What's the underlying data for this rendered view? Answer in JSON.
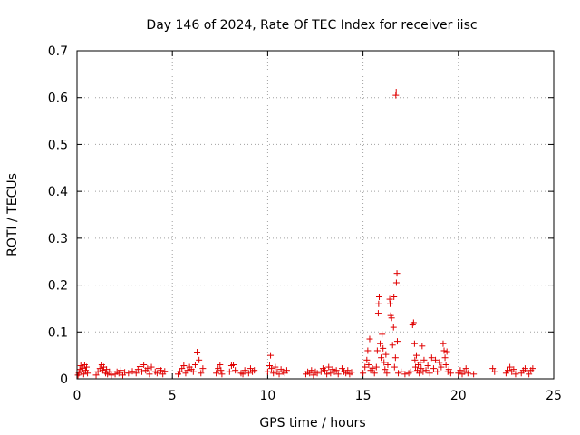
{
  "chart_data": {
    "type": "scatter",
    "title": "Day 146 of 2024, Rate Of TEC Index for receiver iisc",
    "xlabel": "GPS time / hours",
    "ylabel": "ROTI / TECUs",
    "xlim": [
      0,
      25
    ],
    "ylim": [
      0,
      0.7
    ],
    "xticks": [
      0,
      5,
      10,
      15,
      20,
      25
    ],
    "yticks": [
      0,
      0.1,
      0.2,
      0.3,
      0.4,
      0.5,
      0.6,
      0.7
    ],
    "grid": true,
    "marker": "+",
    "colors": {
      "points": "#e00000"
    },
    "series": [
      {
        "name": "ROTI",
        "points": [
          [
            0.1,
            0.012
          ],
          [
            0.15,
            0.02
          ],
          [
            0.2,
            0.028
          ],
          [
            0.25,
            0.015
          ],
          [
            0.3,
            0.022
          ],
          [
            0.35,
            0.01
          ],
          [
            0.4,
            0.03
          ],
          [
            0.45,
            0.018
          ],
          [
            0.5,
            0.025
          ],
          [
            0.55,
            0.012
          ],
          [
            0.05,
            0.008
          ],
          [
            1.0,
            0.008
          ],
          [
            1.1,
            0.015
          ],
          [
            1.2,
            0.022
          ],
          [
            1.3,
            0.03
          ],
          [
            1.35,
            0.018
          ],
          [
            1.4,
            0.025
          ],
          [
            1.5,
            0.012
          ],
          [
            1.55,
            0.02
          ],
          [
            1.6,
            0.01
          ],
          [
            1.7,
            0.015
          ],
          [
            1.8,
            0.008
          ],
          [
            2.0,
            0.01
          ],
          [
            2.1,
            0.015
          ],
          [
            2.2,
            0.012
          ],
          [
            2.3,
            0.018
          ],
          [
            2.4,
            0.008
          ],
          [
            2.5,
            0.014
          ],
          [
            2.7,
            0.012
          ],
          [
            2.9,
            0.016
          ],
          [
            3.1,
            0.012
          ],
          [
            3.2,
            0.02
          ],
          [
            3.3,
            0.026
          ],
          [
            3.4,
            0.015
          ],
          [
            3.5,
            0.03
          ],
          [
            3.6,
            0.018
          ],
          [
            3.7,
            0.022
          ],
          [
            3.8,
            0.01
          ],
          [
            3.9,
            0.025
          ],
          [
            4.1,
            0.015
          ],
          [
            4.2,
            0.012
          ],
          [
            4.3,
            0.022
          ],
          [
            4.4,
            0.018
          ],
          [
            4.5,
            0.01
          ],
          [
            4.6,
            0.016
          ],
          [
            5.3,
            0.01
          ],
          [
            5.4,
            0.015
          ],
          [
            5.5,
            0.022
          ],
          [
            5.6,
            0.028
          ],
          [
            5.7,
            0.012
          ],
          [
            5.8,
            0.018
          ],
          [
            5.9,
            0.025
          ],
          [
            6.0,
            0.02
          ],
          [
            6.1,
            0.015
          ],
          [
            6.2,
            0.03
          ],
          [
            6.3,
            0.057
          ],
          [
            6.4,
            0.04
          ],
          [
            6.5,
            0.012
          ],
          [
            6.6,
            0.022
          ],
          [
            7.3,
            0.012
          ],
          [
            7.4,
            0.022
          ],
          [
            7.5,
            0.03
          ],
          [
            7.55,
            0.018
          ],
          [
            7.6,
            0.01
          ],
          [
            8.0,
            0.015
          ],
          [
            8.1,
            0.028
          ],
          [
            8.2,
            0.03
          ],
          [
            8.3,
            0.018
          ],
          [
            8.6,
            0.012
          ],
          [
            8.7,
            0.01
          ],
          [
            8.8,
            0.018
          ],
          [
            9.0,
            0.012
          ],
          [
            9.1,
            0.022
          ],
          [
            9.2,
            0.015
          ],
          [
            9.3,
            0.018
          ],
          [
            10.0,
            0.015
          ],
          [
            10.1,
            0.028
          ],
          [
            10.15,
            0.05
          ],
          [
            10.2,
            0.022
          ],
          [
            10.3,
            0.012
          ],
          [
            10.4,
            0.025
          ],
          [
            10.5,
            0.015
          ],
          [
            10.6,
            0.01
          ],
          [
            10.7,
            0.02
          ],
          [
            10.8,
            0.015
          ],
          [
            10.9,
            0.012
          ],
          [
            11.0,
            0.018
          ],
          [
            12.0,
            0.01
          ],
          [
            12.1,
            0.015
          ],
          [
            12.2,
            0.012
          ],
          [
            12.3,
            0.018
          ],
          [
            12.4,
            0.008
          ],
          [
            12.5,
            0.015
          ],
          [
            12.6,
            0.012
          ],
          [
            12.8,
            0.015
          ],
          [
            12.9,
            0.022
          ],
          [
            13.0,
            0.018
          ],
          [
            13.1,
            0.01
          ],
          [
            13.2,
            0.025
          ],
          [
            13.3,
            0.012
          ],
          [
            13.4,
            0.02
          ],
          [
            13.5,
            0.015
          ],
          [
            13.6,
            0.018
          ],
          [
            13.7,
            0.01
          ],
          [
            13.9,
            0.022
          ],
          [
            14.0,
            0.015
          ],
          [
            14.1,
            0.012
          ],
          [
            14.2,
            0.018
          ],
          [
            14.3,
            0.01
          ],
          [
            14.4,
            0.014
          ],
          [
            15.0,
            0.012
          ],
          [
            15.1,
            0.025
          ],
          [
            15.2,
            0.04
          ],
          [
            15.25,
            0.06
          ],
          [
            15.3,
            0.03
          ],
          [
            15.35,
            0.085
          ],
          [
            15.4,
            0.018
          ],
          [
            15.5,
            0.022
          ],
          [
            15.6,
            0.012
          ],
          [
            15.7,
            0.025
          ],
          [
            15.75,
            0.06
          ],
          [
            15.8,
            0.14
          ],
          [
            15.82,
            0.16
          ],
          [
            15.85,
            0.175
          ],
          [
            15.9,
            0.075
          ],
          [
            15.95,
            0.045
          ],
          [
            16.0,
            0.095
          ],
          [
            16.05,
            0.065
          ],
          [
            16.1,
            0.035
          ],
          [
            16.15,
            0.02
          ],
          [
            16.2,
            0.052
          ],
          [
            16.25,
            0.012
          ],
          [
            16.3,
            0.03
          ],
          [
            16.4,
            0.17
          ],
          [
            16.42,
            0.16
          ],
          [
            16.45,
            0.135
          ],
          [
            16.5,
            0.13
          ],
          [
            16.55,
            0.072
          ],
          [
            16.6,
            0.11
          ],
          [
            16.62,
            0.175
          ],
          [
            16.65,
            0.025
          ],
          [
            16.7,
            0.045
          ],
          [
            16.75,
            0.205
          ],
          [
            16.78,
            0.225
          ],
          [
            16.8,
            0.08
          ],
          [
            16.85,
            0.012
          ],
          [
            16.72,
            0.605
          ],
          [
            16.74,
            0.612
          ],
          [
            17.0,
            0.015
          ],
          [
            17.2,
            0.01
          ],
          [
            17.4,
            0.012
          ],
          [
            17.5,
            0.015
          ],
          [
            17.6,
            0.115
          ],
          [
            17.65,
            0.12
          ],
          [
            17.7,
            0.075
          ],
          [
            17.72,
            0.04
          ],
          [
            17.75,
            0.025
          ],
          [
            17.8,
            0.05
          ],
          [
            17.85,
            0.018
          ],
          [
            17.9,
            0.03
          ],
          [
            17.95,
            0.012
          ],
          [
            18.0,
            0.035
          ],
          [
            18.05,
            0.022
          ],
          [
            18.1,
            0.07
          ],
          [
            18.15,
            0.015
          ],
          [
            18.2,
            0.04
          ],
          [
            18.3,
            0.018
          ],
          [
            18.4,
            0.028
          ],
          [
            18.5,
            0.012
          ],
          [
            18.6,
            0.045
          ],
          [
            18.7,
            0.022
          ],
          [
            18.8,
            0.04
          ],
          [
            18.9,
            0.015
          ],
          [
            19.0,
            0.035
          ],
          [
            19.1,
            0.025
          ],
          [
            19.2,
            0.075
          ],
          [
            19.25,
            0.06
          ],
          [
            19.3,
            0.045
          ],
          [
            19.35,
            0.03
          ],
          [
            19.4,
            0.058
          ],
          [
            19.45,
            0.015
          ],
          [
            19.5,
            0.02
          ],
          [
            19.6,
            0.012
          ],
          [
            20.0,
            0.012
          ],
          [
            20.1,
            0.018
          ],
          [
            20.2,
            0.01
          ],
          [
            20.3,
            0.015
          ],
          [
            20.4,
            0.022
          ],
          [
            20.5,
            0.012
          ],
          [
            20.8,
            0.01
          ],
          [
            21.8,
            0.022
          ],
          [
            21.9,
            0.015
          ],
          [
            22.5,
            0.012
          ],
          [
            22.6,
            0.018
          ],
          [
            22.7,
            0.025
          ],
          [
            22.8,
            0.015
          ],
          [
            22.9,
            0.02
          ],
          [
            23.0,
            0.01
          ],
          [
            23.3,
            0.012
          ],
          [
            23.4,
            0.018
          ],
          [
            23.5,
            0.022
          ],
          [
            23.6,
            0.015
          ],
          [
            23.7,
            0.01
          ],
          [
            23.8,
            0.018
          ],
          [
            23.9,
            0.022
          ]
        ]
      }
    ]
  }
}
